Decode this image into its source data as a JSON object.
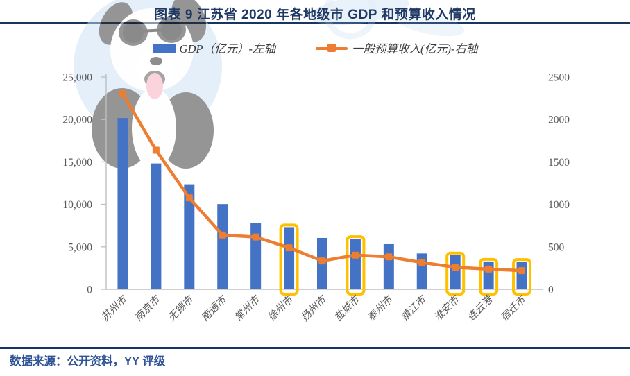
{
  "header": {
    "title": "图表 9 江苏省 2020 年各地级市 GDP 和预算收入情况",
    "title_color": "#1F3864",
    "rule_color": "#17365D"
  },
  "legend": {
    "items": [
      {
        "label": "GDP（亿元）-左轴",
        "swatch": "bar-swatch",
        "color": "#4472C4"
      },
      {
        "label": "一般预算收入(亿元)-右轴",
        "swatch": "line-square-swatch",
        "color": "#ED7D31"
      }
    ]
  },
  "footer": {
    "source": "数据来源：公开资料，YY 评级",
    "color": "#2F5496"
  },
  "watermark": {
    "icon": "dog-with-sunglasses-logo"
  },
  "chart_data": {
    "type": "bar",
    "combo": "bar+line dual axis",
    "title": "江苏省 2020 年各地级市 GDP 和预算收入情况",
    "categories": [
      "苏州市",
      "南京市",
      "无锡市",
      "南通市",
      "常州市",
      "徐州市",
      "扬州市",
      "盐城市",
      "泰州市",
      "镇江市",
      "淮安市",
      "连云港",
      "宿迁市"
    ],
    "series": [
      {
        "name": "GDP（亿元）-左轴",
        "type": "bar",
        "axis": "left",
        "color": "#4472C4",
        "values": [
          20170.5,
          14818.0,
          12370.5,
          10036.3,
          7805.3,
          7319.8,
          6048.3,
          5953.4,
          5312.8,
          4220.1,
          4025.4,
          3277.1,
          3262.4
        ]
      },
      {
        "name": "一般预算收入(亿元)-右轴",
        "type": "line",
        "axis": "right",
        "color": "#ED7D31",
        "marker": "square",
        "values": [
          2303.0,
          1637.7,
          1076.0,
          639.4,
          616.0,
          489.6,
          334.2,
          402.6,
          382.1,
          315.3,
          259.4,
          237.6,
          220.0
        ]
      }
    ],
    "highlighted_categories": [
      "徐州市",
      "盐城市",
      "淮安市",
      "连云港",
      "宿迁市"
    ],
    "highlight_color": "#FFC000",
    "left_axis": {
      "min": 0,
      "max": 25000,
      "step": 5000,
      "tick_labels": [
        "0",
        "5,000",
        "10,000",
        "15,000",
        "20,000",
        "25,000"
      ]
    },
    "right_axis": {
      "min": 0,
      "max": 2500,
      "step": 500,
      "tick_labels": [
        "0",
        "500",
        "1000",
        "1500",
        "2000",
        "2500"
      ]
    },
    "grid": false,
    "legend_position": "top",
    "axis_line_color": "#BFBFBF",
    "tick_label_color": "#595959"
  }
}
